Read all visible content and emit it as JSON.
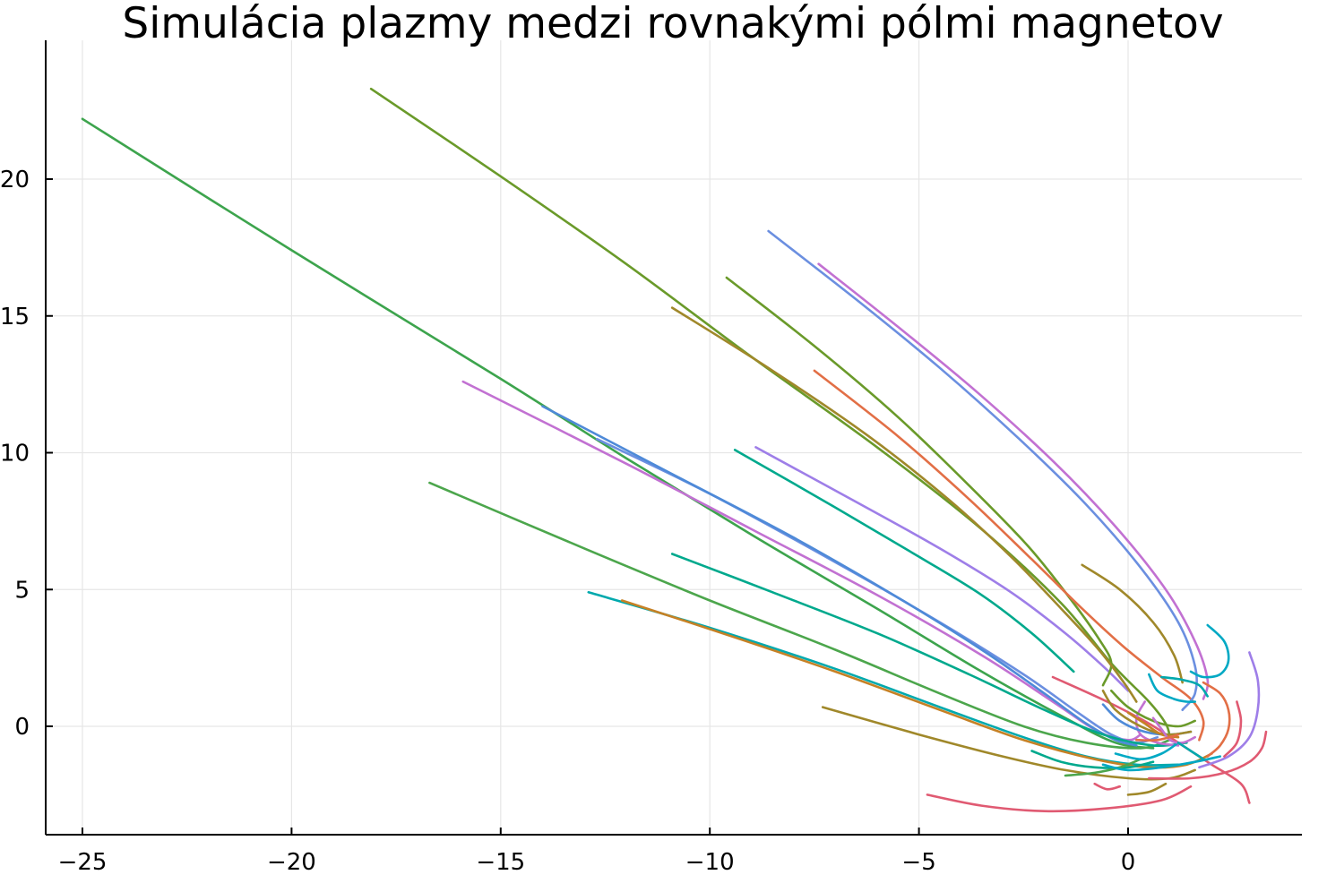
{
  "chart_data": {
    "type": "line",
    "title": "Simulácia plazmy medzi rovnakými pólmi magnetov",
    "xlabel": "",
    "ylabel": "",
    "xlim": [
      -26,
      4
    ],
    "ylim": [
      -4,
      25
    ],
    "xticks": [
      -25,
      -20,
      -15,
      -10,
      -5,
      0
    ],
    "xtick_labels": [
      "−25",
      "−20",
      "−15",
      "−10",
      "−5",
      "0"
    ],
    "yticks": [
      0,
      5,
      10,
      15,
      20
    ],
    "ytick_labels": [
      "0",
      "5",
      "10",
      "15",
      "20"
    ],
    "grid": true,
    "legend": "none",
    "series": [
      {
        "color": "#3da44d",
        "points": [
          [
            -25.0,
            22.2
          ],
          [
            -20,
            17.4
          ],
          [
            -15,
            12.7
          ],
          [
            -12,
            9.8
          ],
          [
            -9,
            7.0
          ],
          [
            -6,
            4.3
          ],
          [
            -3.5,
            2.0
          ],
          [
            -1.5,
            0.3
          ],
          [
            -0.3,
            -0.6
          ],
          [
            0.6,
            -0.8
          ]
        ]
      },
      {
        "color": "#6a9a2a",
        "points": [
          [
            -18.1,
            23.3
          ],
          [
            -15,
            20.1
          ],
          [
            -12,
            16.9
          ],
          [
            -9,
            13.5
          ],
          [
            -6,
            10.2
          ],
          [
            -3.5,
            7.2
          ],
          [
            -1.6,
            4.5
          ],
          [
            -0.4,
            2.3
          ],
          [
            0.5,
            0.9
          ],
          [
            0.9,
            0.1
          ],
          [
            1.0,
            -0.4
          ]
        ]
      },
      {
        "color": "#4ca64c",
        "points": [
          [
            -16.7,
            8.9
          ],
          [
            -13,
            6.5
          ],
          [
            -10,
            4.6
          ],
          [
            -7,
            2.8
          ],
          [
            -4.5,
            1.2
          ],
          [
            -2.5,
            0.0
          ],
          [
            -1.0,
            -0.6
          ],
          [
            0.3,
            -0.8
          ],
          [
            1.0,
            -0.5
          ]
        ]
      },
      {
        "color": "#c271d2",
        "points": [
          [
            -15.9,
            12.6
          ],
          [
            -12,
            9.6
          ],
          [
            -9,
            7.2
          ],
          [
            -6,
            4.8
          ],
          [
            -3.5,
            2.6
          ],
          [
            -1.8,
            0.9
          ],
          [
            -0.7,
            -0.2
          ],
          [
            0.0,
            -0.5
          ],
          [
            0.3,
            -0.3
          ]
        ]
      },
      {
        "color": "#6b8fe0",
        "points": [
          [
            -12.7,
            10.5
          ],
          [
            -10,
            8.5
          ],
          [
            -7,
            6.0
          ],
          [
            -4.5,
            3.8
          ],
          [
            -2.5,
            1.9
          ],
          [
            -1.2,
            0.5
          ],
          [
            -0.4,
            -0.3
          ],
          [
            0.2,
            -0.6
          ],
          [
            0.7,
            -0.4
          ]
        ]
      },
      {
        "color": "#4e8ad8",
        "points": [
          [
            -14,
            11.7
          ],
          [
            -11,
            9.3
          ],
          [
            -8,
            6.9
          ],
          [
            -5.5,
            4.7
          ],
          [
            -3.5,
            2.8
          ],
          [
            -2,
            1.2
          ],
          [
            -1,
            0.1
          ],
          [
            -0.3,
            -0.5
          ],
          [
            0.2,
            -0.7
          ]
        ]
      },
      {
        "color": "#00a9ad",
        "points": [
          [
            -12.9,
            4.9
          ],
          [
            -10,
            3.6
          ],
          [
            -7,
            2.1
          ],
          [
            -4.5,
            0.7
          ],
          [
            -2.5,
            -0.4
          ],
          [
            -1.0,
            -1.1
          ],
          [
            0.2,
            -1.4
          ],
          [
            1.2,
            -1.4
          ]
        ]
      },
      {
        "color": "#c68125",
        "points": [
          [
            -12.1,
            4.6
          ],
          [
            -9.5,
            3.3
          ],
          [
            -7,
            2.0
          ],
          [
            -4.5,
            0.6
          ],
          [
            -2.5,
            -0.5
          ],
          [
            -0.8,
            -1.2
          ],
          [
            0.5,
            -1.5
          ],
          [
            1.4,
            -1.4
          ],
          [
            2.0,
            -1.0
          ]
        ]
      },
      {
        "color": "#00a98d",
        "points": [
          [
            -10.9,
            6.3
          ],
          [
            -8.5,
            4.9
          ],
          [
            -6,
            3.4
          ],
          [
            -3.8,
            1.9
          ],
          [
            -2,
            0.6
          ],
          [
            -0.6,
            -0.3
          ],
          [
            0.6,
            -0.7
          ],
          [
            1.4,
            -0.6
          ]
        ]
      },
      {
        "color": "#00a98d",
        "points": [
          [
            -9.4,
            10.1
          ],
          [
            -7,
            8.0
          ],
          [
            -5,
            6.2
          ],
          [
            -3.5,
            4.8
          ],
          [
            -2.3,
            3.4
          ],
          [
            -1.3,
            2.0
          ]
        ]
      },
      {
        "color": "#9e7ee8",
        "points": [
          [
            -8.9,
            10.2
          ],
          [
            -6.5,
            8.2
          ],
          [
            -4.5,
            6.5
          ],
          [
            -2.8,
            4.9
          ],
          [
            -1.5,
            3.4
          ],
          [
            -0.6,
            2.2
          ],
          [
            0.0,
            1.3
          ]
        ]
      },
      {
        "color": "#6a9a2a",
        "points": [
          [
            -9.6,
            16.4
          ],
          [
            -7.5,
            13.9
          ],
          [
            -5.5,
            11.3
          ],
          [
            -3.8,
            8.8
          ],
          [
            -2.4,
            6.6
          ],
          [
            -1.4,
            4.7
          ],
          [
            -0.7,
            3.2
          ],
          [
            -0.4,
            2.3
          ],
          [
            -0.6,
            1.5
          ]
        ]
      },
      {
        "color": "#a0882a",
        "points": [
          [
            -10.9,
            15.3
          ],
          [
            -8.5,
            13.0
          ],
          [
            -6.2,
            10.6
          ],
          [
            -4.3,
            8.3
          ],
          [
            -2.8,
            6.2
          ],
          [
            -1.6,
            4.3
          ],
          [
            -0.7,
            2.8
          ],
          [
            -0.1,
            1.6
          ],
          [
            0.2,
            0.9
          ]
        ]
      },
      {
        "color": "#e26f46",
        "points": [
          [
            -7.5,
            13.0
          ],
          [
            -5.5,
            10.6
          ],
          [
            -3.8,
            8.3
          ],
          [
            -2.3,
            6.1
          ],
          [
            -1.1,
            4.3
          ],
          [
            -0.1,
            2.9
          ],
          [
            0.8,
            1.8
          ],
          [
            1.5,
            1.0
          ],
          [
            1.8,
            0.2
          ],
          [
            1.7,
            -0.5
          ]
        ]
      },
      {
        "color": "#6b8fe0",
        "points": [
          [
            -8.6,
            18.1
          ],
          [
            -6.5,
            15.6
          ],
          [
            -4.5,
            13.1
          ],
          [
            -2.6,
            10.5
          ],
          [
            -1.0,
            8.1
          ],
          [
            0.3,
            5.8
          ],
          [
            1.2,
            3.8
          ],
          [
            1.6,
            2.2
          ],
          [
            1.6,
            1.2
          ],
          [
            1.3,
            0.6
          ]
        ]
      },
      {
        "color": "#c271d2",
        "points": [
          [
            -7.4,
            16.9
          ],
          [
            -5.5,
            14.6
          ],
          [
            -3.6,
            12.2
          ],
          [
            -1.8,
            9.7
          ],
          [
            -0.3,
            7.3
          ],
          [
            0.9,
            5.0
          ],
          [
            1.6,
            3.1
          ],
          [
            1.9,
            1.7
          ],
          [
            1.8,
            1.0
          ]
        ]
      },
      {
        "color": "#a0882a",
        "points": [
          [
            -7.3,
            0.7
          ],
          [
            -5,
            -0.3
          ],
          [
            -3,
            -1.1
          ],
          [
            -1.5,
            -1.6
          ],
          [
            0,
            -1.9
          ],
          [
            1,
            -1.9
          ],
          [
            1.6,
            -1.6
          ]
        ]
      },
      {
        "color": "#a0882a",
        "points": [
          [
            -1.1,
            5.9
          ],
          [
            -0.2,
            5.0
          ],
          [
            0.6,
            3.8
          ],
          [
            1.1,
            2.6
          ],
          [
            1.3,
            1.6
          ]
        ]
      },
      {
        "color": "#e05a72",
        "points": [
          [
            -4.8,
            -2.5
          ],
          [
            -3.5,
            -2.9
          ],
          [
            -2,
            -3.1
          ],
          [
            -0.5,
            -3.0
          ],
          [
            0.8,
            -2.7
          ],
          [
            1.5,
            -2.2
          ]
        ]
      },
      {
        "color": "#e05a72",
        "points": [
          [
            -1.8,
            1.8
          ],
          [
            -0.5,
            0.9
          ],
          [
            0.5,
            0.1
          ],
          [
            1.3,
            -0.7
          ],
          [
            2,
            -1.4
          ],
          [
            2.7,
            -2.1
          ],
          [
            2.9,
            -2.8
          ]
        ]
      },
      {
        "color": "#e05a72",
        "points": [
          [
            0.5,
            -1.9
          ],
          [
            1.5,
            -1.9
          ],
          [
            2.3,
            -1.7
          ],
          [
            2.9,
            -1.3
          ],
          [
            3.2,
            -0.8
          ],
          [
            3.3,
            -0.2
          ]
        ]
      },
      {
        "color": "#9e7ee8",
        "points": [
          [
            2.9,
            2.7
          ],
          [
            3.1,
            1.7
          ],
          [
            3.1,
            0.6
          ],
          [
            2.9,
            -0.4
          ],
          [
            2.4,
            -1.1
          ],
          [
            1.7,
            -1.5
          ]
        ]
      },
      {
        "color": "#00a9c4",
        "points": [
          [
            1.9,
            3.7
          ],
          [
            2.3,
            3.1
          ],
          [
            2.4,
            2.4
          ],
          [
            2.2,
            1.9
          ],
          [
            1.8,
            1.8
          ],
          [
            1.5,
            2.0
          ]
        ]
      },
      {
        "color": "#00a9c4",
        "points": [
          [
            0.5,
            1.9
          ],
          [
            0.7,
            1.3
          ],
          [
            1.1,
            1.0
          ],
          [
            1.4,
            0.9
          ],
          [
            1.6,
            0.9
          ]
        ]
      },
      {
        "color": "#00a9ad",
        "points": [
          [
            0.8,
            1.8
          ],
          [
            1.3,
            1.7
          ],
          [
            1.7,
            1.5
          ],
          [
            1.9,
            1.1
          ]
        ]
      },
      {
        "color": "#e26f46",
        "points": [
          [
            1.8,
            1.6
          ],
          [
            2.2,
            1.2
          ],
          [
            2.4,
            0.6
          ],
          [
            2.4,
            -0.1
          ],
          [
            2.2,
            -0.7
          ],
          [
            1.9,
            -1.1
          ]
        ]
      },
      {
        "color": "#e05a72",
        "points": [
          [
            2.6,
            0.9
          ],
          [
            2.7,
            0.2
          ],
          [
            2.6,
            -0.6
          ],
          [
            2.3,
            -1.1
          ]
        ]
      },
      {
        "color": "#c271d2",
        "points": [
          [
            0.4,
            0.9
          ],
          [
            0.2,
            0.3
          ],
          [
            0.3,
            -0.3
          ],
          [
            0.7,
            -0.6
          ],
          [
            1.2,
            -0.7
          ]
        ]
      },
      {
        "color": "#4e8ad8",
        "points": [
          [
            -0.6,
            0.8
          ],
          [
            -0.2,
            0.2
          ],
          [
            0.4,
            -0.2
          ],
          [
            1.0,
            -0.3
          ],
          [
            1.5,
            -0.2
          ]
        ]
      },
      {
        "color": "#6a9a2a",
        "points": [
          [
            -0.4,
            1.3
          ],
          [
            0.0,
            0.7
          ],
          [
            0.6,
            0.2
          ],
          [
            1.2,
            0.0
          ],
          [
            1.6,
            0.2
          ]
        ]
      },
      {
        "color": "#a0882a",
        "points": [
          [
            -0.6,
            1.3
          ],
          [
            -0.3,
            0.6
          ],
          [
            0.3,
            0.0
          ],
          [
            0.9,
            -0.3
          ],
          [
            1.5,
            -0.2
          ]
        ]
      },
      {
        "color": "#00a98d",
        "points": [
          [
            -2.3,
            -0.9
          ],
          [
            -1.6,
            -1.3
          ],
          [
            -0.8,
            -1.5
          ],
          [
            0.0,
            -1.5
          ],
          [
            0.6,
            -1.3
          ]
        ]
      },
      {
        "color": "#4ca64c",
        "points": [
          [
            -1.5,
            -1.8
          ],
          [
            -0.8,
            -1.7
          ],
          [
            -0.2,
            -1.5
          ],
          [
            0.3,
            -1.2
          ]
        ]
      },
      {
        "color": "#00a9c4",
        "points": [
          [
            -0.6,
            -1.4
          ],
          [
            0.0,
            -1.6
          ],
          [
            0.8,
            -1.5
          ],
          [
            1.6,
            -1.3
          ],
          [
            2.2,
            -1.1
          ]
        ]
      },
      {
        "color": "#00a9c4",
        "points": [
          [
            -0.3,
            -1.0
          ],
          [
            0.3,
            -1.2
          ],
          [
            0.8,
            -1.0
          ],
          [
            1.2,
            -0.6
          ]
        ]
      },
      {
        "color": "#a0882a",
        "points": [
          [
            0.0,
            -2.5
          ],
          [
            0.5,
            -2.4
          ],
          [
            0.9,
            -2.1
          ]
        ]
      },
      {
        "color": "#c68125",
        "points": [
          [
            0.0,
            0.5
          ],
          [
            0.4,
            0.1
          ],
          [
            0.8,
            -0.3
          ],
          [
            1.2,
            -0.4
          ]
        ]
      },
      {
        "color": "#e05a72",
        "points": [
          [
            -0.8,
            -2.1
          ],
          [
            -0.5,
            -2.3
          ],
          [
            -0.2,
            -2.2
          ]
        ]
      },
      {
        "color": "#c271d2",
        "points": [
          [
            0.6,
            0.3
          ],
          [
            0.8,
            -0.1
          ],
          [
            1.0,
            -0.5
          ],
          [
            1.3,
            -0.6
          ],
          [
            1.6,
            -0.4
          ]
        ]
      },
      {
        "color": "#00a9ad",
        "points": [
          [
            1.2,
            -0.6
          ],
          [
            1.5,
            -0.9
          ],
          [
            1.8,
            -1.2
          ]
        ]
      },
      {
        "color": "#e26f46",
        "points": [
          [
            0.2,
            -0.5
          ],
          [
            0.7,
            -0.5
          ],
          [
            1.2,
            -0.3
          ]
        ]
      }
    ]
  }
}
